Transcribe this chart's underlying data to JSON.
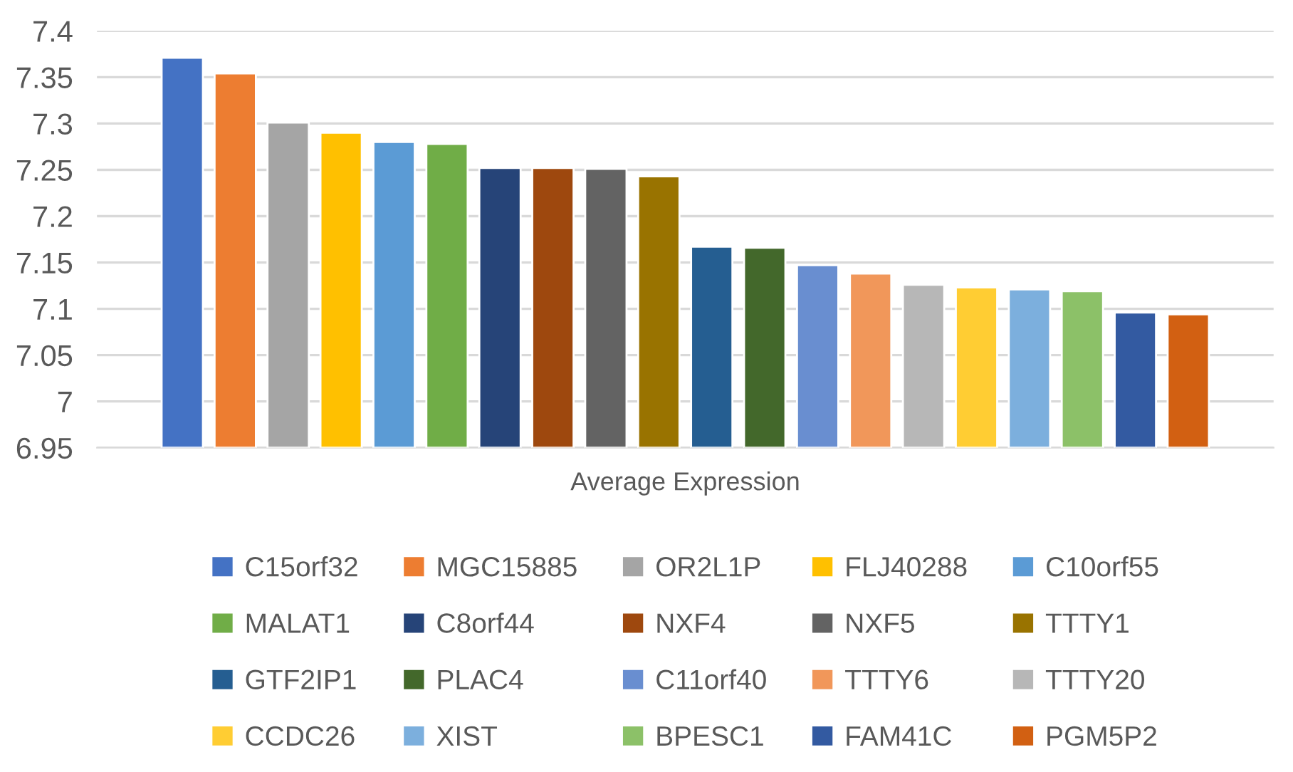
{
  "chart_data": {
    "type": "bar",
    "xlabel": "Average Expression",
    "categories": [
      "Average Expression"
    ],
    "series": [
      {
        "name": "C15orf32",
        "color": "#4472c4",
        "values": [
          7.371
        ]
      },
      {
        "name": "MGC15885",
        "color": "#ed7d31",
        "values": [
          7.354
        ]
      },
      {
        "name": "OR2L1P",
        "color": "#a5a5a5",
        "values": [
          7.301
        ]
      },
      {
        "name": "FLJ40288",
        "color": "#ffc000",
        "values": [
          7.29
        ]
      },
      {
        "name": "C10orf55",
        "color": "#5b9bd5",
        "values": [
          7.28
        ]
      },
      {
        "name": "MALAT1",
        "color": "#70ad47",
        "values": [
          7.278
        ]
      },
      {
        "name": "C8orf44",
        "color": "#264478",
        "values": [
          7.252
        ]
      },
      {
        "name": "NXF4",
        "color": "#9e480e",
        "values": [
          7.252
        ]
      },
      {
        "name": "NXF5",
        "color": "#636363",
        "values": [
          7.251
        ]
      },
      {
        "name": "TTTY1",
        "color": "#997300",
        "values": [
          7.243
        ]
      },
      {
        "name": "GTF2IP1",
        "color": "#255e91",
        "values": [
          7.167
        ]
      },
      {
        "name": "PLAC4",
        "color": "#43682b",
        "values": [
          7.166
        ]
      },
      {
        "name": "C11orf40",
        "color": "#698ed0",
        "values": [
          7.147
        ]
      },
      {
        "name": "TTTY6",
        "color": "#f1975a",
        "values": [
          7.138
        ]
      },
      {
        "name": "TTTY20",
        "color": "#b7b7b7",
        "values": [
          7.126
        ]
      },
      {
        "name": "CCDC26",
        "color": "#ffcd33",
        "values": [
          7.123
        ]
      },
      {
        "name": "XIST",
        "color": "#7cafdd",
        "values": [
          7.121
        ]
      },
      {
        "name": "BPESC1",
        "color": "#8cc168",
        "values": [
          7.119
        ]
      },
      {
        "name": "FAM41C",
        "color": "#335aa1",
        "values": [
          7.096
        ]
      },
      {
        "name": "PGM5P2",
        "color": "#d26012",
        "values": [
          7.094
        ]
      }
    ],
    "ylim": [
      6.95,
      7.4
    ],
    "yticks": [
      6.95,
      7,
      7.05,
      7.1,
      7.15,
      7.2,
      7.25,
      7.3,
      7.35,
      7.4
    ],
    "grid": "y",
    "legend": "bottom"
  }
}
